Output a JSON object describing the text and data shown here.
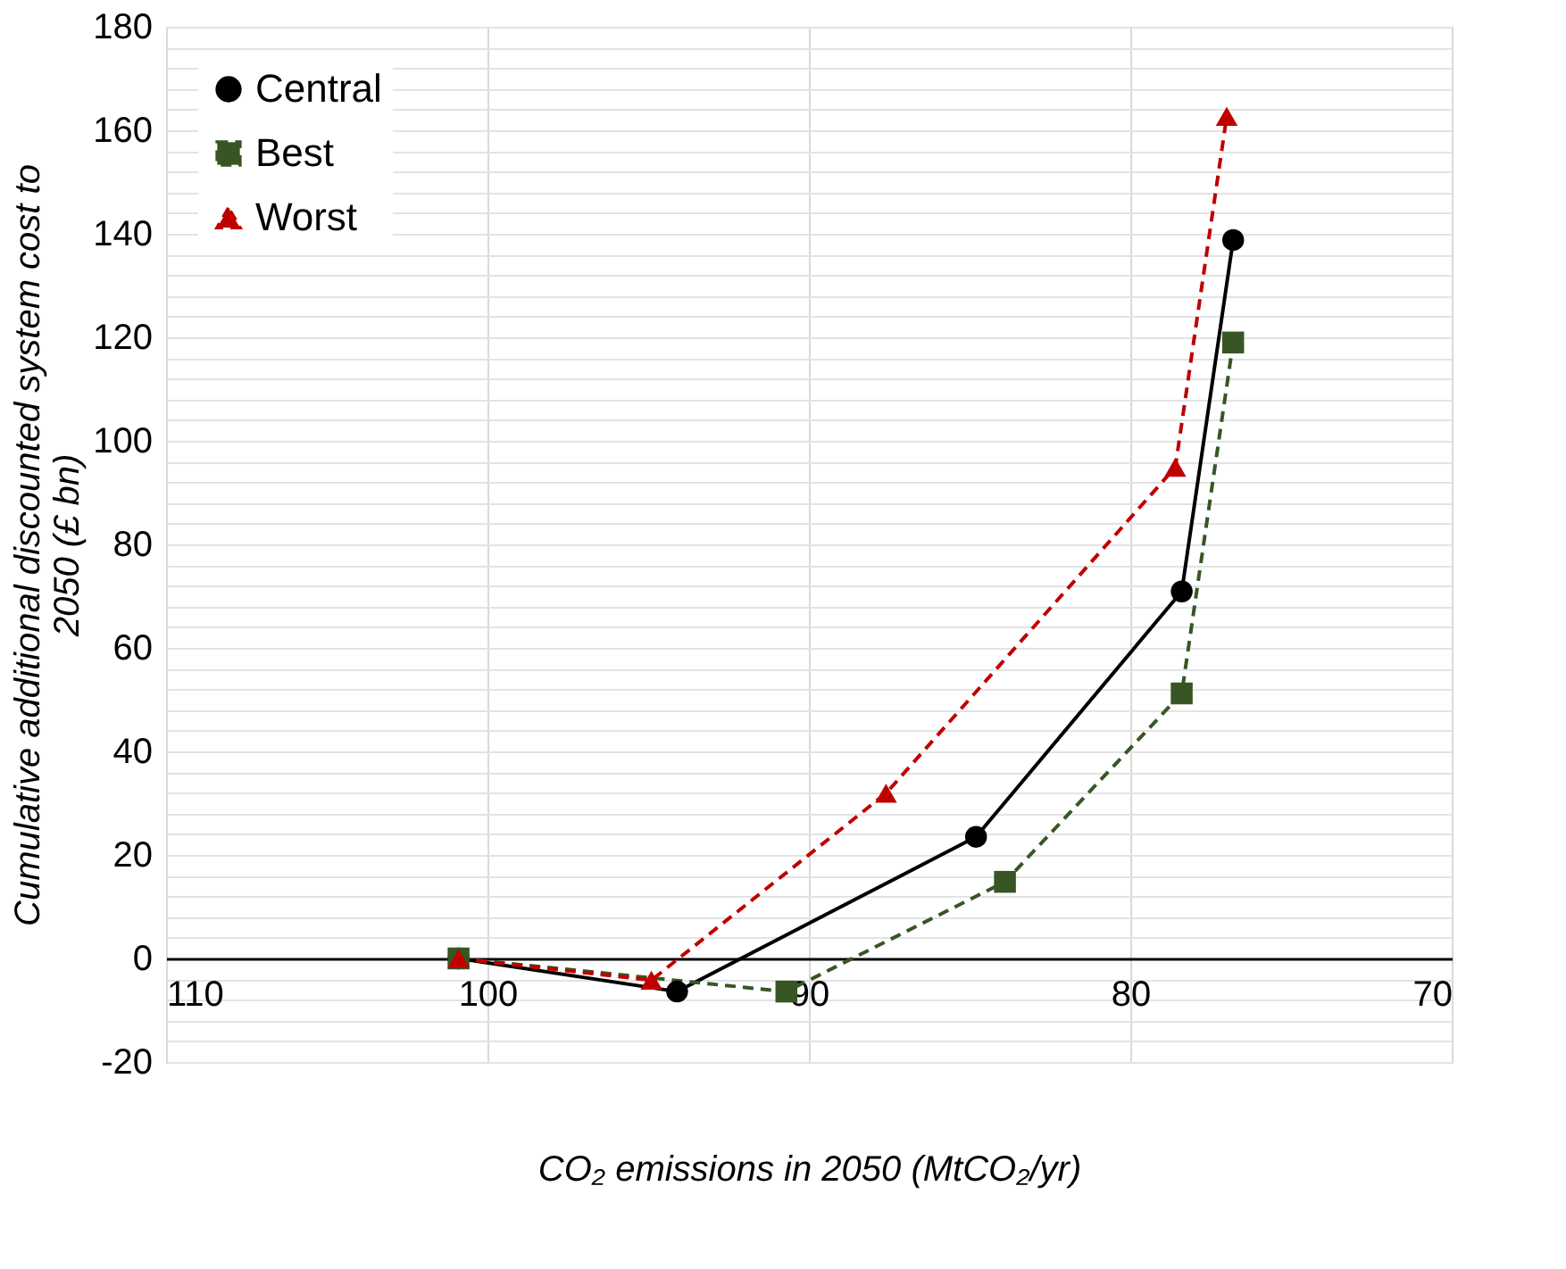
{
  "chart_data": {
    "type": "line",
    "xlabel": "CO₂ emissions in 2050 (MtCO₂/yr)",
    "ylabel": "Cumulative additional discounted system cost to 2050 (£ bn)",
    "xlim": [
      110,
      70
    ],
    "xticks": [
      110,
      100,
      90,
      80,
      70
    ],
    "ylim": [
      -20,
      180
    ],
    "yticks": [
      -20,
      {
        "value": -16,
        "label": null
      },
      {
        "value": -12,
        "label": null
      },
      {
        "value": -8,
        "label": null
      },
      {
        "value": -4,
        "label": null
      },
      0,
      {
        "value": 4,
        "label": null
      },
      {
        "value": 8,
        "label": null
      },
      {
        "value": 12,
        "label": null
      },
      {
        "value": 16,
        "label": null
      },
      20,
      {
        "value": 24,
        "label": null
      },
      {
        "value": 28,
        "label": null
      },
      {
        "value": 32,
        "label": null
      },
      {
        "value": 36,
        "label": null
      },
      40,
      {
        "value": 44,
        "label": null
      },
      {
        "value": 48,
        "label": null
      },
      {
        "value": 52,
        "label": null
      },
      {
        "value": 56,
        "label": null
      },
      60,
      {
        "value": 64,
        "label": null
      },
      {
        "value": 68,
        "label": null
      },
      {
        "value": 72,
        "label": null
      },
      {
        "value": 76,
        "label": null
      },
      80,
      {
        "value": 84,
        "label": null
      },
      {
        "value": 88,
        "label": null
      },
      {
        "value": 92,
        "label": null
      },
      {
        "value": 96,
        "label": null
      },
      100,
      {
        "value": 104,
        "label": null
      },
      {
        "value": 108,
        "label": null
      },
      {
        "value": 112,
        "label": null
      },
      {
        "value": 116,
        "label": null
      },
      120,
      {
        "value": 124,
        "label": null
      },
      {
        "value": 128,
        "label": null
      },
      {
        "value": 132,
        "label": null
      },
      {
        "value": 136,
        "label": null
      },
      140,
      {
        "value": 144,
        "label": null
      },
      {
        "value": 148,
        "label": null
      },
      {
        "value": 152,
        "label": null
      },
      {
        "value": 156,
        "label": null
      },
      160,
      {
        "value": 164,
        "label": null
      },
      {
        "value": 168,
        "label": null
      },
      {
        "value": 172,
        "label": null
      },
      {
        "value": 176,
        "label": null
      },
      180
    ],
    "grid": true,
    "legend": "top left",
    "series": [
      {
        "name": "Central",
        "color": "#000000",
        "marker": "circle",
        "line_style": "solid",
        "x": [
          100.9,
          94.1,
          84.8,
          78.4,
          76.8
        ],
        "values": [
          0,
          -6.4,
          23.5,
          70.9,
          138.8
        ]
      },
      {
        "name": "Best",
        "color": "#375623",
        "marker": "square",
        "line_style": "dashed",
        "x": [
          100.9,
          90.7,
          83.9,
          78.4,
          76.8
        ],
        "values": [
          0,
          -6.4,
          14.8,
          51.2,
          119
        ]
      },
      {
        "name": "Worst",
        "color": "#c00000",
        "marker": "triangle",
        "line_style": "dashed",
        "x": [
          100.9,
          94.9,
          87.6,
          78.6,
          77.0
        ],
        "values": [
          0,
          -4.2,
          31.9,
          94.9,
          162.7
        ]
      }
    ]
  }
}
